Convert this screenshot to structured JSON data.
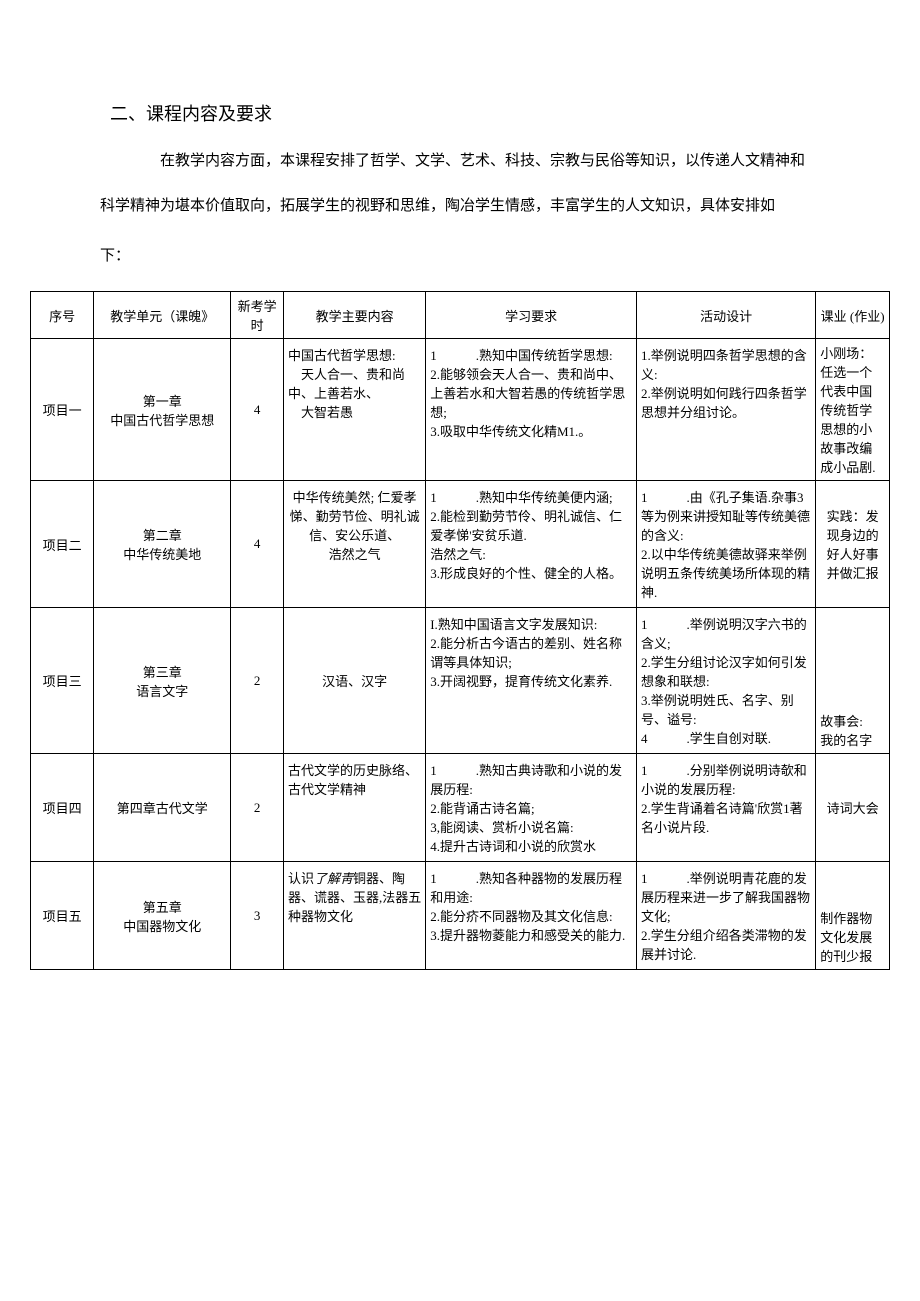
{
  "section_title": "二、课程内容及要求",
  "intro_line1": "在教学内容方面，本课程安排了哲学、文学、艺术、科技、宗教与民俗等知识，以传递人文精神和",
  "intro_line2": "科学精神为堪本价值取向，拓展学生的视野和思维，陶冶学生情感，丰富学生的人文知识，具体安排如",
  "intro_line3": "下：",
  "table": {
    "headers": {
      "seq": "序号",
      "unit": "教学单元（课魄》",
      "hours": "新考学时",
      "content": "教学主要内容",
      "requirement": "学习要求",
      "activity": "活动设计",
      "homework": "课业 (作业)"
    },
    "rows": [
      {
        "seq": "项目一",
        "unit_line1": "第一章",
        "unit_line2": "中国古代哲学思想",
        "hours": "4",
        "content": "中国古代哲学思想:\n　天人合一、贵和尚中、上善若水、\n　大智若愚",
        "requirement": "1　　　.熟知中国传统哲学思想:\n2.能够领会天人合一、贵和尚中、上善若水和大智若愚的传统哲学思想;\n3.吸取中华传统文化精M1.。",
        "activity": "1.举例说明四条哲学思想的含义:\n2.举例说明如何践行四条哲学思想并分组讨论。",
        "homework": "小刚场：任选一个代表中国传统哲学思想的小故事改编成小品剧."
      },
      {
        "seq": "项目二",
        "unit_line1": "第二章",
        "unit_line2": "中华传统美地",
        "hours": "4",
        "content": "中华传统美然;  仁爱孝悌、勤劳节俭、明礼诚信、安公乐道、\n浩然之气",
        "requirement": "1　　　.熟知中华传统美便内涵;\n2.能检到勤劳节伶、明礼诚信、仁爱孝悌'安贫乐道.\n浩然之气:\n3.形成良好的个性、健全的人格。",
        "activity": "1　　　.由《孔子集语.杂事3等为例来讲授知耻等传统美德的含义:\n2.以中华传统美德故驿来举例说明五条传统美场所体现的精神.",
        "homework": "实践：发现身边的好人好事并做汇报"
      },
      {
        "seq": "项目三",
        "unit_line1": "第三章",
        "unit_line2": "语言文字",
        "hours": "2",
        "content": "汉语、汉字",
        "requirement": "I.熟知中国语言文字发展知识:\n2.能分析古今语古的差别、姓名称谓等具体知识;\n3.开阔视野，提育传统文化素养.",
        "activity": "1　　　.举例说明汉字六书的含义;\n2.学生分组讨论汉字如何引发想象和联想:\n3.举例说明姓氏、名字、别号、谥号:\n4　　　.学生自创对联.",
        "homework": "故事会:\n我的名字"
      },
      {
        "seq": "项目四",
        "unit_line1": "第四章古代文学",
        "unit_line2": "",
        "hours": "2",
        "content": "古代文学的历史脉络、\n古代文学精神",
        "requirement": "1　　　.熟知古典诗歌和小说的发展历程:\n2.能背诵古诗名篇;\n3,能阅读、赏析小说名篇:\n4.提升古诗词和小说的欣赏水",
        "activity": "1　　　.分别举例说明诗欹和小说的发展历程:\n2.学生背诵着名诗篇'欣赏1著名小说片段.",
        "homework": "诗词大会"
      },
      {
        "seq": "项目五",
        "unit_line1": "第五章",
        "unit_line2": "中国器物文化",
        "hours": "3",
        "content_prefix": "认识",
        "content_italic": "了解靑",
        "content_suffix": "铜器、陶器、谎器、玉器,法器五种器物文化",
        "requirement": "1　　　.熟知各种器物的发展历程和用途:\n2.能分疥不同器物及其文化信息:\n3.提升器物菱能力和感受关的能力.",
        "activity": "1　　　.举例说明青花鹿的发展历程来进一步了解我国器物文化;\n2.学生分组介绍各类滞物的发展并讨论.",
        "homework": "制作器物文化发展的刊少报"
      }
    ]
  }
}
